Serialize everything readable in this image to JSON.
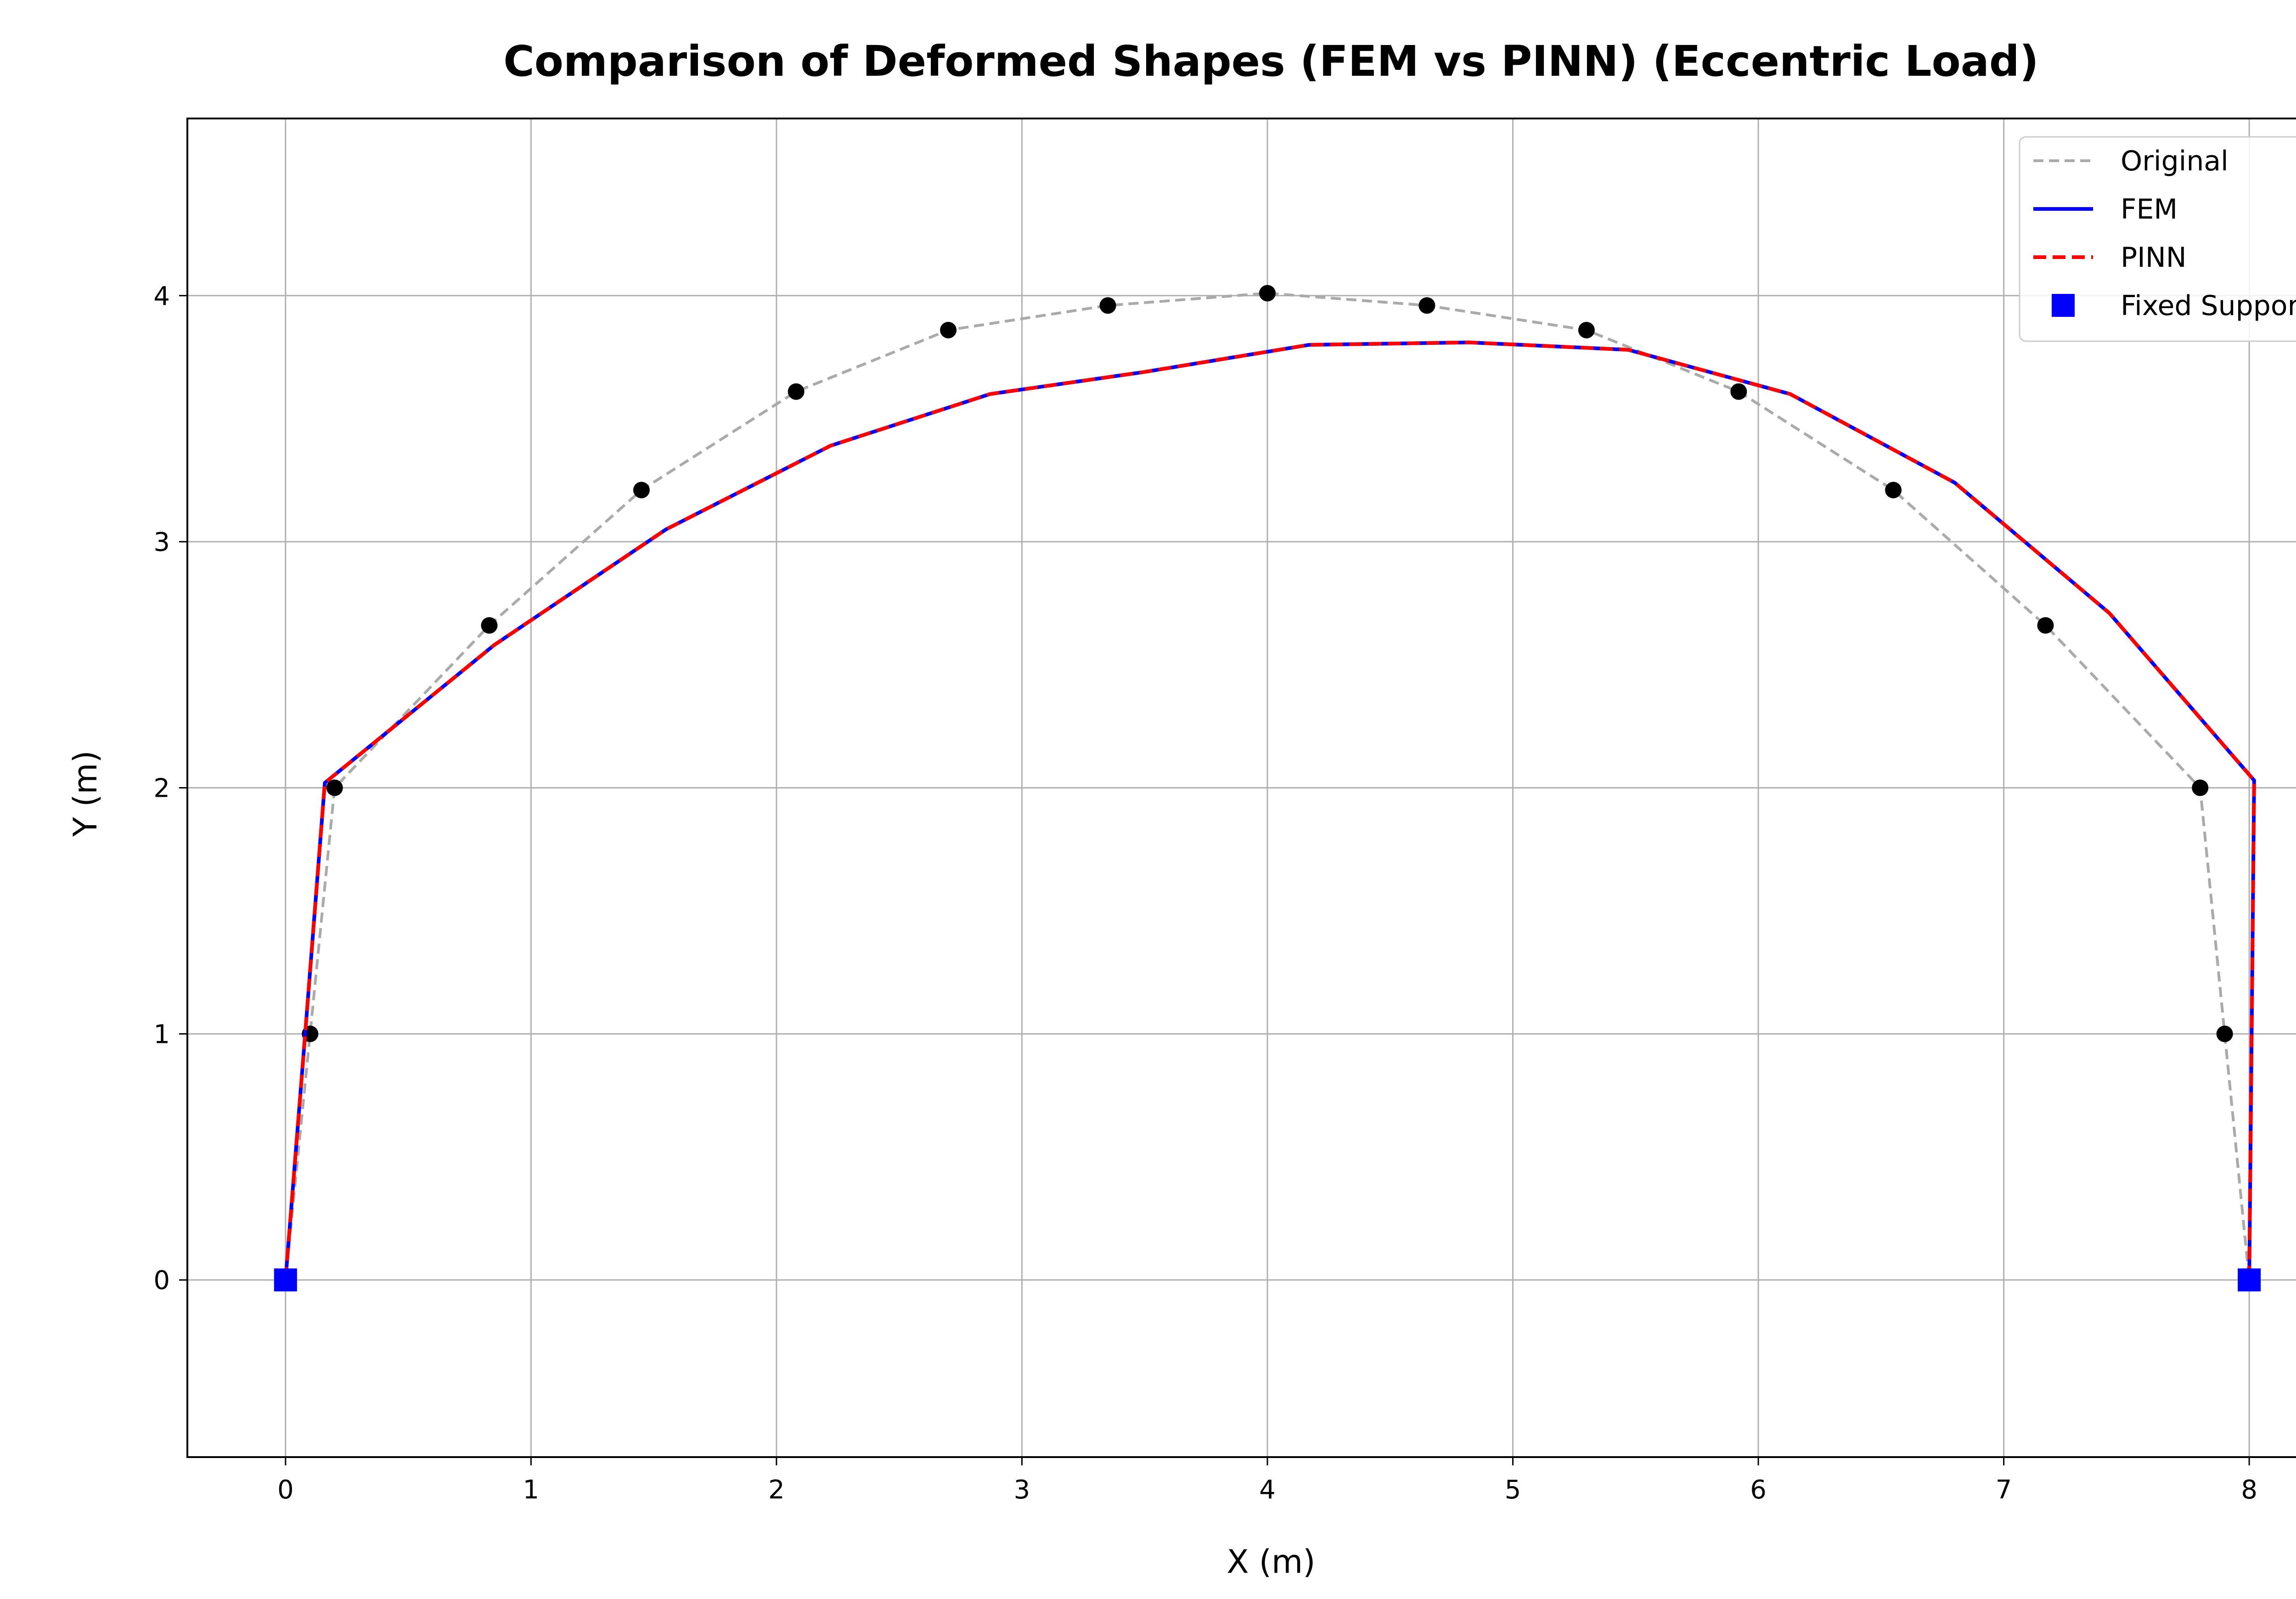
{
  "chart_data": {
    "type": "line",
    "title": "Comparison of Deformed Shapes (FEM vs PINN) (Eccentric Load)",
    "xlabel": "X (m)",
    "ylabel": "Y (m)",
    "xlim": [
      -0.4,
      8.43
    ],
    "ylim": [
      -0.72,
      4.72
    ],
    "xticks": [
      0,
      1,
      2,
      3,
      4,
      5,
      6,
      7,
      8
    ],
    "yticks": [
      0,
      1,
      2,
      3,
      4
    ],
    "grid": true,
    "legend_position": "top-right",
    "series": [
      {
        "name": "Original",
        "color": "#aaaaaa",
        "style": "dashed",
        "x": [
          0,
          0.1,
          0.2,
          0.83,
          1.45,
          2.08,
          2.7,
          3.35,
          4.0,
          4.65,
          5.3,
          5.92,
          6.55,
          7.17,
          7.8,
          7.9,
          8.0
        ],
        "y": [
          0,
          1,
          2,
          2.66,
          3.21,
          3.61,
          3.86,
          3.96,
          4.01,
          3.96,
          3.86,
          3.61,
          3.21,
          2.66,
          2.0,
          1.0,
          0
        ]
      },
      {
        "name": "FEM",
        "color": "#0000ff",
        "style": "solid",
        "x": [
          0,
          0.08,
          0.16,
          0.85,
          1.55,
          2.22,
          2.87,
          3.5,
          4.17,
          4.82,
          5.47,
          6.13,
          6.8,
          7.43,
          8.02,
          8.01,
          8.0
        ],
        "y": [
          0,
          1.0,
          2.02,
          2.58,
          3.05,
          3.39,
          3.6,
          3.69,
          3.8,
          3.81,
          3.78,
          3.6,
          3.24,
          2.71,
          2.03,
          1.01,
          0
        ]
      },
      {
        "name": "PINN",
        "color": "#ff0000",
        "style": "dashed",
        "x": [
          0,
          0.08,
          0.16,
          0.85,
          1.55,
          2.22,
          2.87,
          3.5,
          4.17,
          4.82,
          5.47,
          6.13,
          6.8,
          7.43,
          8.02,
          8.01,
          8.0
        ],
        "y": [
          0,
          1.0,
          2.02,
          2.58,
          3.05,
          3.39,
          3.6,
          3.69,
          3.8,
          3.81,
          3.78,
          3.6,
          3.24,
          2.71,
          2.03,
          1.01,
          0
        ]
      },
      {
        "name": "Fixed Support",
        "color": "#0000ff",
        "style": "square-marker",
        "x": [
          0,
          8
        ],
        "y": [
          0,
          0
        ]
      }
    ],
    "nodes": {
      "color": "#000000",
      "x": [
        0.1,
        0.2,
        0.83,
        1.45,
        2.08,
        2.7,
        3.35,
        4.0,
        4.65,
        5.3,
        5.92,
        6.55,
        7.17,
        7.8,
        7.9
      ],
      "y": [
        1,
        2,
        2.66,
        3.21,
        3.61,
        3.86,
        3.96,
        4.01,
        3.96,
        3.86,
        3.61,
        3.21,
        2.66,
        2.0,
        1.0
      ]
    }
  }
}
